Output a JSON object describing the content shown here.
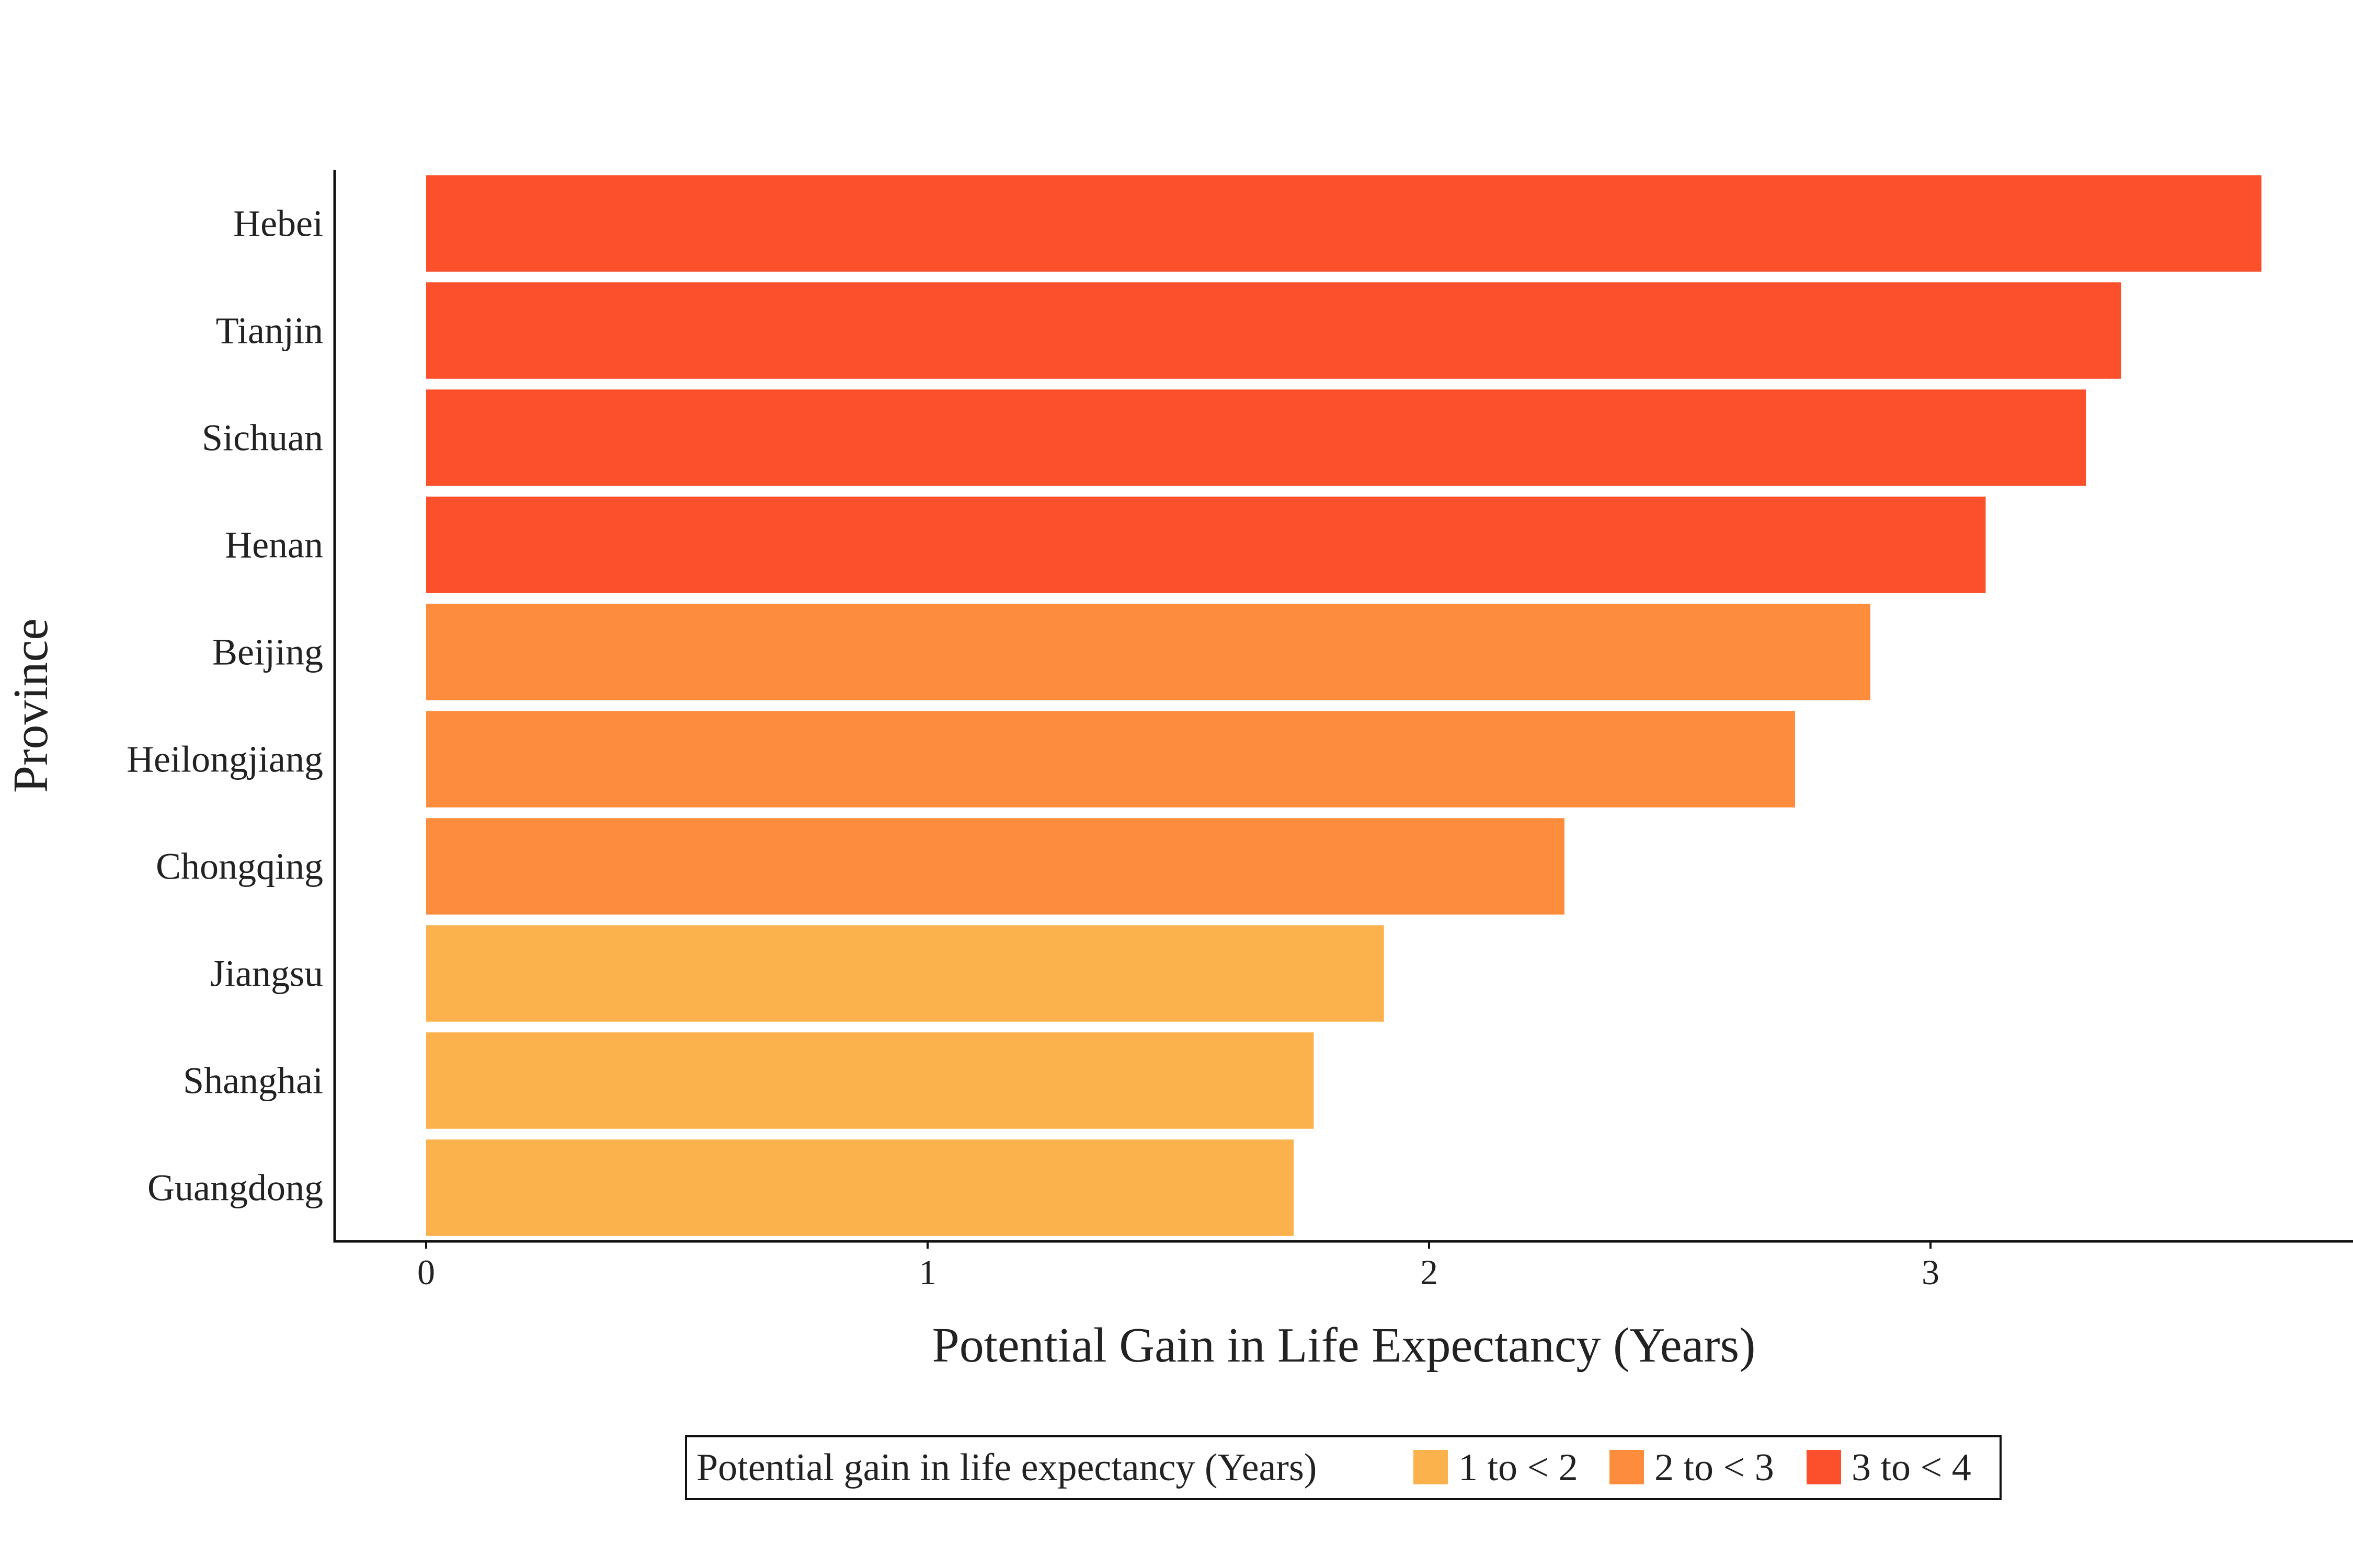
{
  "chart_data": {
    "type": "bar",
    "orientation": "horizontal",
    "categories": [
      "Hebei",
      "Tianjin",
      "Sichuan",
      "Henan",
      "Beijing",
      "Heilongjiang",
      "Chongqing",
      "Jiangsu",
      "Shanghai",
      "Guangdong"
    ],
    "values": [
      3.66,
      3.38,
      3.31,
      3.11,
      2.88,
      2.73,
      2.27,
      1.91,
      1.77,
      1.73
    ],
    "groups": [
      "3 to < 4",
      "3 to < 4",
      "3 to < 4",
      "3 to < 4",
      "2 to < 3",
      "2 to < 3",
      "2 to < 3",
      "1 to < 2",
      "1 to < 2",
      "1 to < 2"
    ],
    "xlabel": "Potential Gain in Life Expectancy (Years)",
    "ylabel": "Province",
    "xlim": [
      -0.18,
      3.84
    ],
    "xticks": [
      "0",
      "1",
      "2",
      "3"
    ],
    "grid": false,
    "legend": {
      "title": "Potential gain in life expectancy (Years)",
      "placement": "bottom",
      "entries": [
        {
          "label": "1 to < 2",
          "color": "#FCB24C"
        },
        {
          "label": "2 to < 3",
          "color": "#FD8D3C"
        },
        {
          "label": "3 to < 4",
          "color": "#FC502D"
        }
      ]
    }
  }
}
